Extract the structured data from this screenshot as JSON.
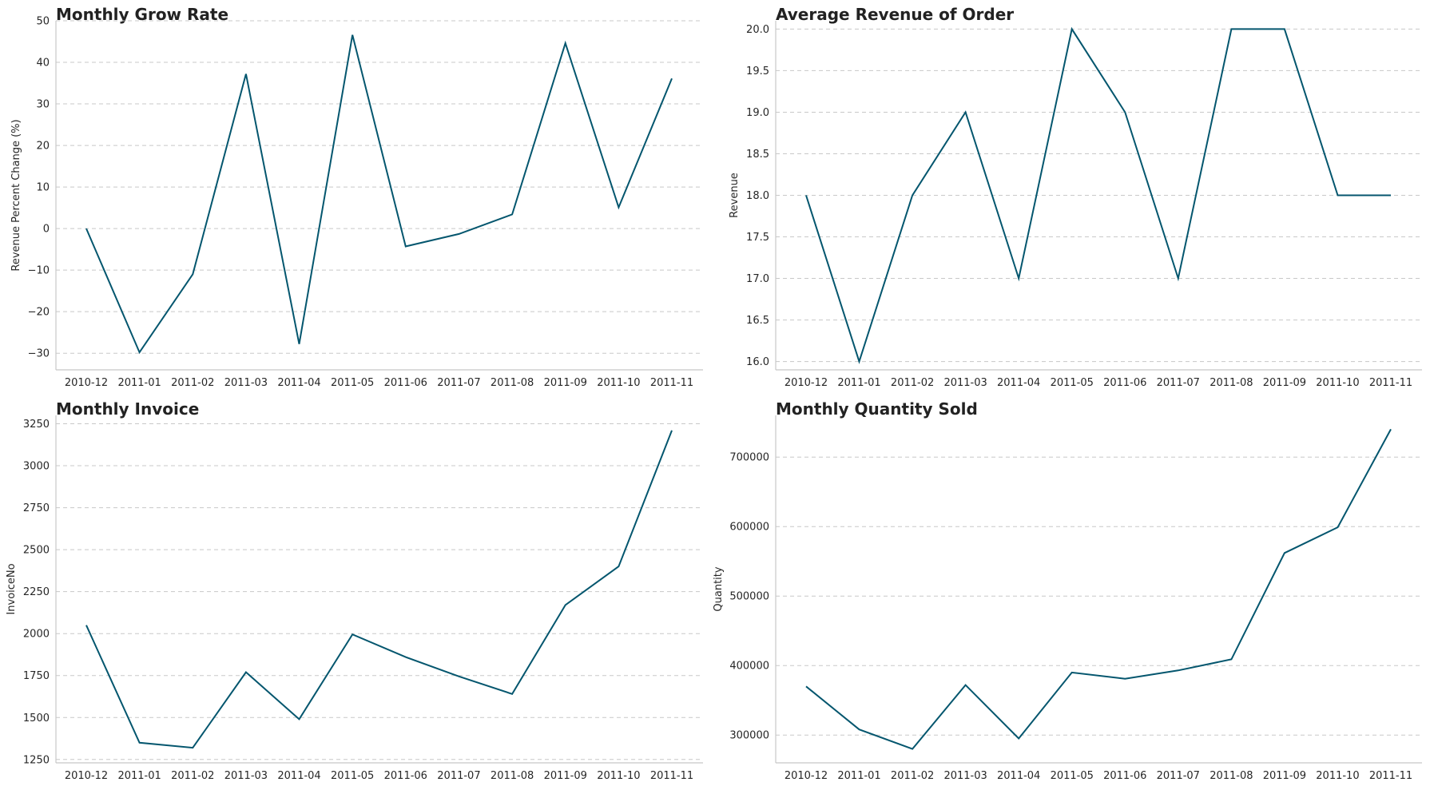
{
  "theme": {
    "line_color": "#04566e",
    "grid_color": "#c8c8c8",
    "axis_color": "#c8c8c8",
    "text_color": "#262626"
  },
  "chart_data": [
    {
      "type": "line",
      "title": "Monthly Grow Rate",
      "xlabel": "",
      "ylabel": "Revenue Percent Change (%)",
      "categories": [
        "2010-12",
        "2011-01",
        "2011-02",
        "2011-03",
        "2011-04",
        "2011-05",
        "2011-06",
        "2011-07",
        "2011-08",
        "2011-09",
        "2011-10",
        "2011-11"
      ],
      "values": [
        0,
        -29.8,
        -11,
        37.2,
        -27.8,
        46.6,
        -4.3,
        -1.3,
        3.4,
        44.6,
        5.1,
        36.1
      ],
      "ylim": [
        -34,
        50
      ],
      "yticks": [
        -30,
        -20,
        -10,
        0,
        10,
        20,
        30,
        40,
        50
      ],
      "ytick_labels": [
        "−30",
        "−20",
        "−10",
        "0",
        "10",
        "20",
        "30",
        "40",
        "50"
      ],
      "grid": true
    },
    {
      "type": "line",
      "title": "Average Revenue of Order",
      "xlabel": "",
      "ylabel": "Revenue",
      "categories": [
        "2010-12",
        "2011-01",
        "2011-02",
        "2011-03",
        "2011-04",
        "2011-05",
        "2011-06",
        "2011-07",
        "2011-08",
        "2011-09",
        "2011-10",
        "2011-11"
      ],
      "values": [
        18,
        16,
        18,
        19,
        17,
        20,
        19,
        17,
        20,
        20,
        18,
        18
      ],
      "ylim": [
        15.9,
        20.1
      ],
      "yticks": [
        16.0,
        16.5,
        17.0,
        17.5,
        18.0,
        18.5,
        19.0,
        19.5,
        20.0
      ],
      "ytick_labels": [
        "16.0",
        "16.5",
        "17.0",
        "17.5",
        "18.0",
        "18.5",
        "19.0",
        "19.5",
        "20.0"
      ],
      "grid": true
    },
    {
      "type": "line",
      "title": "Monthly Invoice",
      "xlabel": "",
      "ylabel": "InvoiceNo",
      "categories": [
        "2010-12",
        "2011-01",
        "2011-02",
        "2011-03",
        "2011-04",
        "2011-05",
        "2011-06",
        "2011-07",
        "2011-08",
        "2011-09",
        "2011-10",
        "2011-11"
      ],
      "values": [
        2050,
        1350,
        1320,
        1770,
        1490,
        1995,
        1860,
        1745,
        1640,
        2170,
        2400,
        3210
      ],
      "ylim": [
        1230,
        3300
      ],
      "yticks": [
        1250,
        1500,
        1750,
        2000,
        2250,
        2500,
        2750,
        3000,
        3250
      ],
      "ytick_labels": [
        "1250",
        "1500",
        "1750",
        "2000",
        "2250",
        "2500",
        "2750",
        "3000",
        "3250"
      ],
      "grid": true
    },
    {
      "type": "line",
      "title": "Monthly Quantity Sold",
      "xlabel": "",
      "ylabel": "Quantity",
      "categories": [
        "2010-12",
        "2011-01",
        "2011-02",
        "2011-03",
        "2011-04",
        "2011-05",
        "2011-06",
        "2011-07",
        "2011-08",
        "2011-09",
        "2011-10",
        "2011-11"
      ],
      "values": [
        370000,
        308000,
        280000,
        372000,
        295000,
        390000,
        381000,
        393000,
        409000,
        562000,
        599000,
        740000
      ],
      "ylim": [
        260000,
        760000
      ],
      "yticks": [
        300000,
        400000,
        500000,
        600000,
        700000
      ],
      "ytick_labels": [
        "300000",
        "400000",
        "500000",
        "600000",
        "700000"
      ],
      "grid": true
    }
  ]
}
